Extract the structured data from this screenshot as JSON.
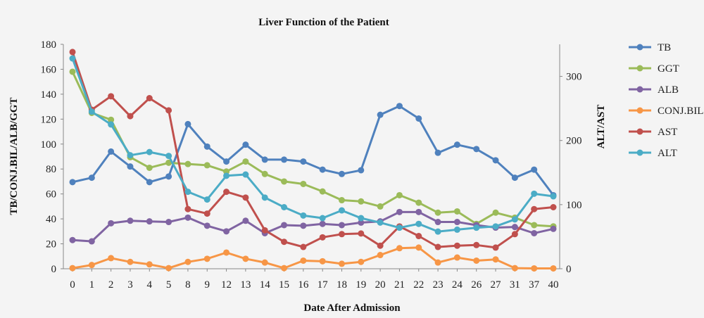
{
  "chart_data": {
    "type": "line",
    "title": "Liver Function of the Patient",
    "xlabel": "Date After Admission",
    "ylabel_left": "TB/CONJ.BIL/ALB/GGT",
    "ylabel_right": "ALT/AST",
    "ylim_left": [
      0,
      180
    ],
    "yticks_left": [
      "0",
      "20",
      "40",
      "60",
      "80",
      "100",
      "120",
      "140",
      "160",
      "180"
    ],
    "ylim_right": [
      0,
      350
    ],
    "yticks_right": [
      "0",
      "100",
      "200",
      "300"
    ],
    "categories": [
      "0",
      "1",
      "2",
      "3",
      "4",
      "5",
      "8",
      "9",
      "12",
      "13",
      "14",
      "15",
      "16",
      "17",
      "18",
      "19",
      "20",
      "21",
      "22",
      "23",
      "24",
      "26",
      "27",
      "31",
      "37",
      "40"
    ],
    "legend_position": "right",
    "grid": false,
    "series": [
      {
        "name": "TB",
        "axis": "left",
        "color": "#4f81bd",
        "values": [
          69.5,
          73,
          94,
          82,
          69.5,
          74,
          116,
          98,
          86,
          99.5,
          87.5,
          87.5,
          86,
          79.5,
          76,
          79,
          123.5,
          130.5,
          120.5,
          93,
          99.5,
          96,
          87,
          73,
          79.5,
          59
        ]
      },
      {
        "name": "GGT",
        "axis": "left",
        "color": "#9bbb59",
        "values": [
          158,
          125,
          119.5,
          89.5,
          81,
          85,
          84,
          83,
          78,
          86,
          76,
          70,
          68,
          62,
          55,
          54,
          50,
          59,
          53,
          45,
          46,
          36,
          45,
          41,
          35,
          34
        ]
      },
      {
        "name": "ALB",
        "axis": "left",
        "color": "#8064a2",
        "values": [
          23,
          22,
          36.5,
          38.5,
          38,
          37.5,
          41,
          34.5,
          30,
          38.5,
          28.5,
          35,
          34.5,
          36,
          35,
          37,
          38,
          45.5,
          45.5,
          37.5,
          37.5,
          35,
          33,
          33.5,
          28.5,
          32
        ]
      },
      {
        "name": "CONJ.BIL",
        "axis": "left",
        "color": "#f79646",
        "values": [
          0.5,
          3,
          8.5,
          5.5,
          3.5,
          0.5,
          5.5,
          8,
          13,
          8,
          5,
          0.5,
          6.5,
          6,
          4,
          5.5,
          11,
          16.5,
          17,
          5,
          9,
          6.5,
          7.5,
          0.5,
          0.3,
          0.3
        ]
      },
      {
        "name": "AST",
        "axis": "right",
        "color": "#c0504d",
        "values": [
          338,
          248,
          269,
          238,
          266,
          247,
          93,
          86,
          120,
          111,
          60,
          42,
          34,
          49,
          54,
          55,
          36,
          66,
          51,
          34,
          36,
          37,
          33,
          54,
          93,
          96
        ]
      },
      {
        "name": "ALT",
        "axis": "right",
        "color": "#4bacc6",
        "values": [
          328,
          245,
          225,
          177,
          182,
          176,
          120,
          108,
          145,
          147,
          111,
          96,
          83,
          79,
          91,
          79,
          72,
          64,
          70,
          58,
          61,
          64,
          66,
          77,
          117,
          113
        ]
      }
    ]
  }
}
